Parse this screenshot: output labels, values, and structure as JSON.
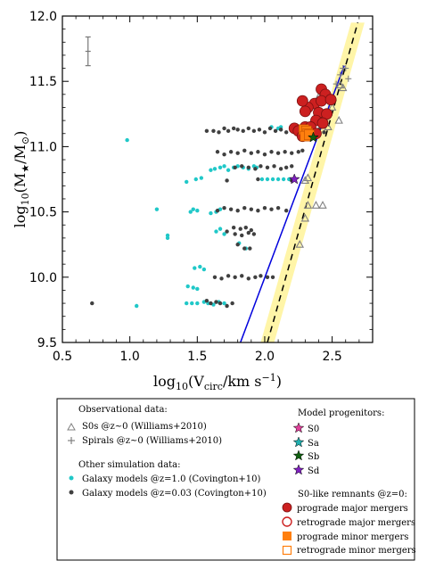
{
  "chart_data": {
    "type": "scatter",
    "xlabel": "log10(Vcirc/km s^-1)",
    "ylabel": "log10(M★/M⊙)",
    "xlim": [
      0.5,
      2.8
    ],
    "ylim": [
      9.5,
      12.0
    ],
    "xticks": [
      "0.5",
      "1.0",
      "1.5",
      "2.0",
      "2.5"
    ],
    "xtick_values": [
      0.5,
      1.0,
      1.5,
      2.0,
      2.5
    ],
    "yticks": [
      "9.5",
      "10.0",
      "10.5",
      "11.0",
      "11.5",
      "12.0"
    ],
    "ytick_values": [
      9.5,
      10.0,
      10.5,
      11.0,
      11.5,
      12.0
    ],
    "grid": false,
    "legend_position": "below",
    "error_bar": {
      "x": 0.69,
      "y": 11.73,
      "dy": 0.11,
      "color": "#777777"
    },
    "colors": {
      "cyan": "#20c8c8",
      "dark": "#404040",
      "red": "#cc2020",
      "orange": "#ff7f0e",
      "gray": "#808080",
      "blue": "#0000dd",
      "band": "#fff5a8",
      "s0": "#e0409a",
      "sa": "#20b0b0",
      "sb": "#106010",
      "sd": "#8020c0"
    },
    "reference_lines": [
      {
        "name": "blue-solid",
        "points": [
          [
            1.82,
            9.5
          ],
          [
            2.59,
            11.62
          ]
        ]
      },
      {
        "name": "black-dashed",
        "points": [
          [
            2.02,
            9.5
          ],
          [
            2.69,
            11.95
          ]
        ],
        "band_halfwidth": 0.05
      }
    ],
    "series": [
      {
        "name": "",
        "marker": "dot",
        "color": "#20c8c8",
        "points": [
          [
            0.98,
            11.05
          ],
          [
            1.05,
            9.78
          ],
          [
            1.2,
            10.52
          ],
          [
            1.28,
            10.32
          ],
          [
            1.28,
            10.3
          ],
          [
            1.45,
            10.5
          ],
          [
            1.5,
            10.51
          ],
          [
            1.47,
            10.52
          ],
          [
            1.42,
            10.73
          ],
          [
            1.49,
            10.75
          ],
          [
            1.53,
            10.76
          ],
          [
            1.48,
            10.07
          ],
          [
            1.52,
            10.08
          ],
          [
            1.55,
            10.06
          ],
          [
            1.43,
            9.93
          ],
          [
            1.47,
            9.92
          ],
          [
            1.5,
            9.91
          ],
          [
            1.42,
            9.8
          ],
          [
            1.46,
            9.8
          ],
          [
            1.5,
            9.8
          ],
          [
            1.55,
            9.81
          ],
          [
            1.58,
            9.8
          ],
          [
            1.62,
            9.79
          ],
          [
            1.66,
            9.81
          ],
          [
            1.7,
            9.8
          ],
          [
            1.6,
            10.49
          ],
          [
            1.64,
            10.5
          ],
          [
            1.67,
            10.52
          ],
          [
            1.64,
            10.35
          ],
          [
            1.67,
            10.37
          ],
          [
            1.7,
            10.33
          ],
          [
            1.6,
            10.82
          ],
          [
            1.63,
            10.83
          ],
          [
            1.67,
            10.84
          ],
          [
            1.7,
            10.85
          ],
          [
            1.73,
            10.82
          ],
          [
            1.77,
            10.84
          ],
          [
            1.8,
            10.85
          ],
          [
            1.84,
            10.84
          ],
          [
            1.88,
            10.83
          ],
          [
            1.92,
            10.85
          ],
          [
            1.94,
            10.84
          ],
          [
            1.81,
            10.26
          ],
          [
            1.86,
            10.22
          ],
          [
            1.98,
            10.75
          ],
          [
            2.02,
            10.75
          ],
          [
            2.06,
            10.75
          ],
          [
            2.1,
            10.75
          ],
          [
            2.14,
            10.75
          ],
          [
            2.18,
            10.75
          ],
          [
            2.05,
            11.15
          ],
          [
            2.1,
            11.14
          ],
          [
            2.12,
            11.15
          ]
        ]
      },
      {
        "name": "",
        "marker": "dot",
        "color": "#404040",
        "points": [
          [
            0.72,
            9.8
          ],
          [
            1.57,
            11.12
          ],
          [
            1.62,
            11.12
          ],
          [
            1.66,
            11.11
          ],
          [
            1.7,
            11.14
          ],
          [
            1.73,
            11.12
          ],
          [
            1.77,
            11.14
          ],
          [
            1.8,
            11.13
          ],
          [
            1.84,
            11.12
          ],
          [
            1.88,
            11.14
          ],
          [
            1.92,
            11.12
          ],
          [
            1.96,
            11.13
          ],
          [
            2.0,
            11.11
          ],
          [
            2.04,
            11.14
          ],
          [
            2.08,
            11.12
          ],
          [
            2.12,
            11.13
          ],
          [
            2.16,
            11.11
          ],
          [
            2.2,
            11.14
          ],
          [
            2.24,
            11.12
          ],
          [
            2.28,
            11.13
          ],
          [
            2.32,
            11.11
          ],
          [
            2.36,
            11.12
          ],
          [
            2.4,
            11.13
          ],
          [
            2.44,
            11.11
          ],
          [
            1.65,
            10.96
          ],
          [
            1.7,
            10.94
          ],
          [
            1.75,
            10.96
          ],
          [
            1.8,
            10.95
          ],
          [
            1.85,
            10.97
          ],
          [
            1.9,
            10.95
          ],
          [
            1.95,
            10.96
          ],
          [
            2.0,
            10.94
          ],
          [
            2.05,
            10.96
          ],
          [
            2.1,
            10.95
          ],
          [
            2.15,
            10.96
          ],
          [
            2.2,
            10.95
          ],
          [
            2.25,
            10.96
          ],
          [
            2.28,
            10.97
          ],
          [
            1.78,
            10.84
          ],
          [
            1.83,
            10.85
          ],
          [
            1.88,
            10.84
          ],
          [
            1.93,
            10.83
          ],
          [
            1.97,
            10.85
          ],
          [
            2.02,
            10.84
          ],
          [
            2.07,
            10.85
          ],
          [
            2.12,
            10.83
          ],
          [
            2.16,
            10.84
          ],
          [
            2.2,
            10.85
          ],
          [
            1.72,
            10.74
          ],
          [
            1.95,
            10.75
          ],
          [
            2.2,
            10.74
          ],
          [
            1.65,
            10.51
          ],
          [
            1.7,
            10.53
          ],
          [
            1.75,
            10.52
          ],
          [
            1.8,
            10.51
          ],
          [
            1.85,
            10.53
          ],
          [
            1.9,
            10.52
          ],
          [
            1.95,
            10.51
          ],
          [
            2.0,
            10.53
          ],
          [
            2.05,
            10.52
          ],
          [
            2.1,
            10.53
          ],
          [
            2.16,
            10.51
          ],
          [
            1.77,
            10.38
          ],
          [
            1.82,
            10.37
          ],
          [
            1.86,
            10.38
          ],
          [
            1.9,
            10.36
          ],
          [
            1.72,
            10.35
          ],
          [
            1.78,
            10.33
          ],
          [
            1.83,
            10.32
          ],
          [
            1.88,
            10.34
          ],
          [
            1.92,
            10.33
          ],
          [
            1.8,
            10.25
          ],
          [
            1.85,
            10.22
          ],
          [
            1.89,
            10.22
          ],
          [
            1.63,
            10.0
          ],
          [
            1.68,
            9.99
          ],
          [
            1.73,
            10.01
          ],
          [
            1.78,
            10.0
          ],
          [
            1.83,
            10.01
          ],
          [
            1.88,
            9.99
          ],
          [
            1.93,
            10.0
          ],
          [
            1.97,
            10.01
          ],
          [
            2.02,
            10.0
          ],
          [
            2.06,
            10.0
          ],
          [
            1.57,
            9.82
          ],
          [
            1.6,
            9.8
          ],
          [
            1.64,
            9.81
          ],
          [
            1.67,
            9.8
          ],
          [
            1.72,
            9.78
          ],
          [
            1.76,
            9.8
          ]
        ]
      },
      {
        "name": "",
        "marker": "triangle",
        "color": "#808080",
        "points": [
          [
            2.56,
            11.47
          ],
          [
            2.58,
            11.45
          ],
          [
            2.4,
            11.38
          ],
          [
            2.5,
            11.3
          ],
          [
            2.47,
            11.15
          ],
          [
            2.55,
            11.2
          ],
          [
            2.3,
            10.74
          ],
          [
            2.32,
            10.76
          ],
          [
            2.32,
            10.55
          ],
          [
            2.3,
            10.45
          ],
          [
            2.38,
            10.55
          ],
          [
            2.43,
            10.55
          ],
          [
            2.26,
            10.25
          ]
        ]
      },
      {
        "name": "",
        "marker": "plus",
        "color": "#808080",
        "points": [
          [
            2.58,
            11.6
          ],
          [
            2.6,
            11.6
          ],
          [
            2.56,
            11.55
          ],
          [
            2.53,
            11.48
          ],
          [
            2.62,
            11.52
          ],
          [
            2.42,
            11.22
          ],
          [
            2.45,
            11.2
          ]
        ]
      },
      {
        "name": "",
        "marker": "circle-filled",
        "color": "#cc2020",
        "points": [
          [
            2.42,
            11.44
          ],
          [
            2.45,
            11.4
          ],
          [
            2.37,
            11.33
          ],
          [
            2.42,
            11.35
          ],
          [
            2.49,
            11.36
          ],
          [
            2.32,
            11.3
          ],
          [
            2.3,
            11.27
          ],
          [
            2.28,
            11.35
          ],
          [
            2.4,
            11.26
          ],
          [
            2.46,
            11.25
          ],
          [
            2.38,
            11.2
          ],
          [
            2.43,
            11.18
          ],
          [
            2.3,
            11.15
          ],
          [
            2.34,
            11.15
          ],
          [
            2.22,
            11.14
          ],
          [
            2.25,
            11.12
          ],
          [
            2.38,
            11.1
          ],
          [
            2.28,
            11.08
          ]
        ]
      },
      {
        "name": "",
        "marker": "square-filled",
        "color": "#ff7f0e",
        "points": [
          [
            2.29,
            11.13
          ],
          [
            2.31,
            11.12
          ],
          [
            2.32,
            11.1
          ],
          [
            2.3,
            11.08
          ],
          [
            2.33,
            11.09
          ]
        ]
      },
      {
        "name": "",
        "marker": "star",
        "color": "#8020c0",
        "points": [
          [
            2.22,
            10.75
          ]
        ]
      },
      {
        "name": "",
        "marker": "star",
        "color": "#106010",
        "points": [
          [
            2.36,
            11.07
          ]
        ]
      }
    ]
  },
  "legend": {
    "observational_title": "Observational data:",
    "s0s": "S0s @z~0 (Williams+2010)",
    "spirals": "Spirals @z~0 (Williams+2010)",
    "simulation_title": "Other simulation data:",
    "galaxy_z1": "Galaxy models @z=1.0 (Covington+10)",
    "galaxy_z003": "Galaxy models @z=0.03 (Covington+10)",
    "progenitors_title": "Model progenitors:",
    "s0": "S0",
    "sa": "Sa",
    "sb": "Sb",
    "sd": "Sd",
    "remnants_title": "S0-like remnants @z=0:",
    "pro_major": "prograde major mergers",
    "retro_major": "retrograde major mergers",
    "pro_minor": "prograde minor mergers",
    "retro_minor": "retrograde minor mergers"
  }
}
